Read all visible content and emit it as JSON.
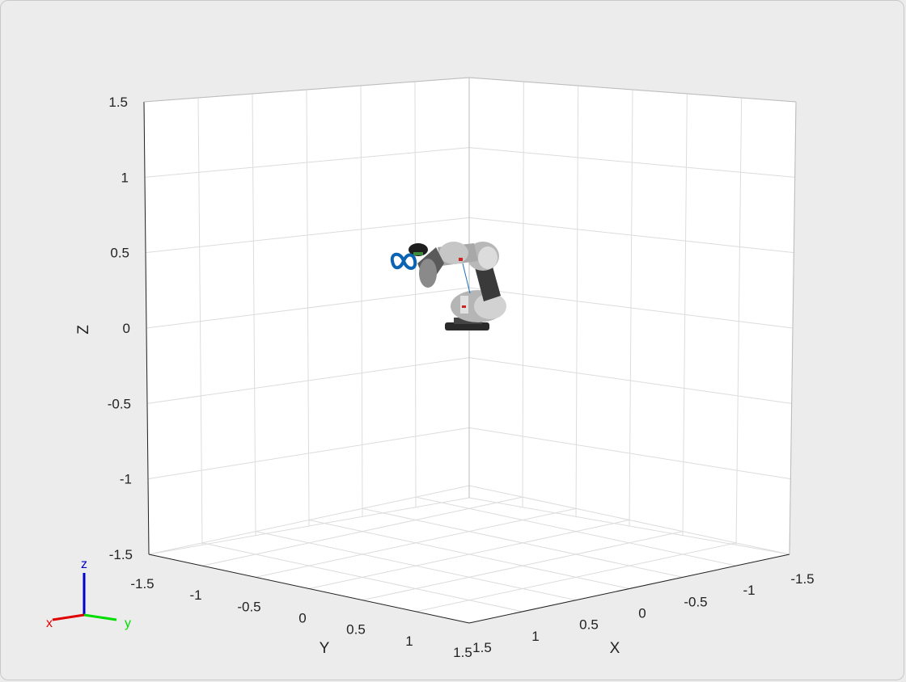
{
  "figure": {
    "background": "#ececec",
    "axes_background": "#ffffff",
    "grid_color": "#dcdcdc"
  },
  "axes": {
    "xlabel": "X",
    "ylabel": "Y",
    "zlabel": "Z",
    "x_ticks": [
      "-1.5",
      "-1",
      "-0.5",
      "0",
      "0.5",
      "1",
      "1.5"
    ],
    "y_ticks": [
      "-1.5",
      "-1",
      "-0.5",
      "0",
      "0.5",
      "1",
      "1.5"
    ],
    "z_ticks": [
      "-1.5",
      "-1",
      "-0.5",
      "0",
      "0.5",
      "1",
      "1.5"
    ],
    "xlim": [
      -1.5,
      1.5
    ],
    "ylim": [
      -1.5,
      1.5
    ],
    "zlim": [
      -1.5,
      1.5
    ],
    "grid": true
  },
  "triad": {
    "x_label": "x",
    "y_label": "y",
    "z_label": "z",
    "x_color": "#e00000",
    "y_color": "#00dd00",
    "z_color": "#0000cc"
  },
  "scene": {
    "trajectory_color": "#0a64b4",
    "robot_color": "#b5b5b5",
    "robot_dark_color": "#3a3a3a"
  }
}
